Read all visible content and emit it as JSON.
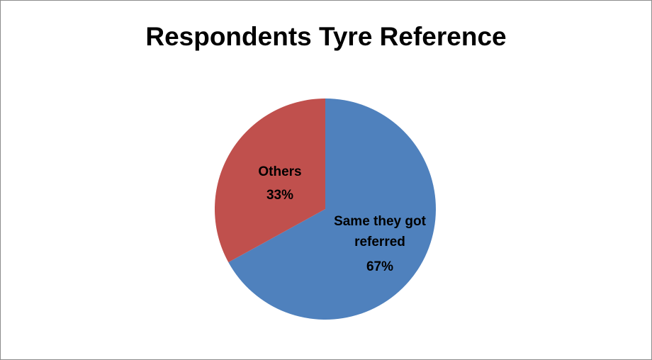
{
  "chart_data": {
    "type": "pie",
    "title": "Respondents Tyre Reference",
    "slices": [
      {
        "label_lines": [
          "Same they got",
          "referred"
        ],
        "percent_label": "67%",
        "value": 67,
        "color": "#4f81bd"
      },
      {
        "label_lines": [
          "Others"
        ],
        "percent_label": "33%",
        "value": 33,
        "color": "#c0504d"
      }
    ]
  }
}
